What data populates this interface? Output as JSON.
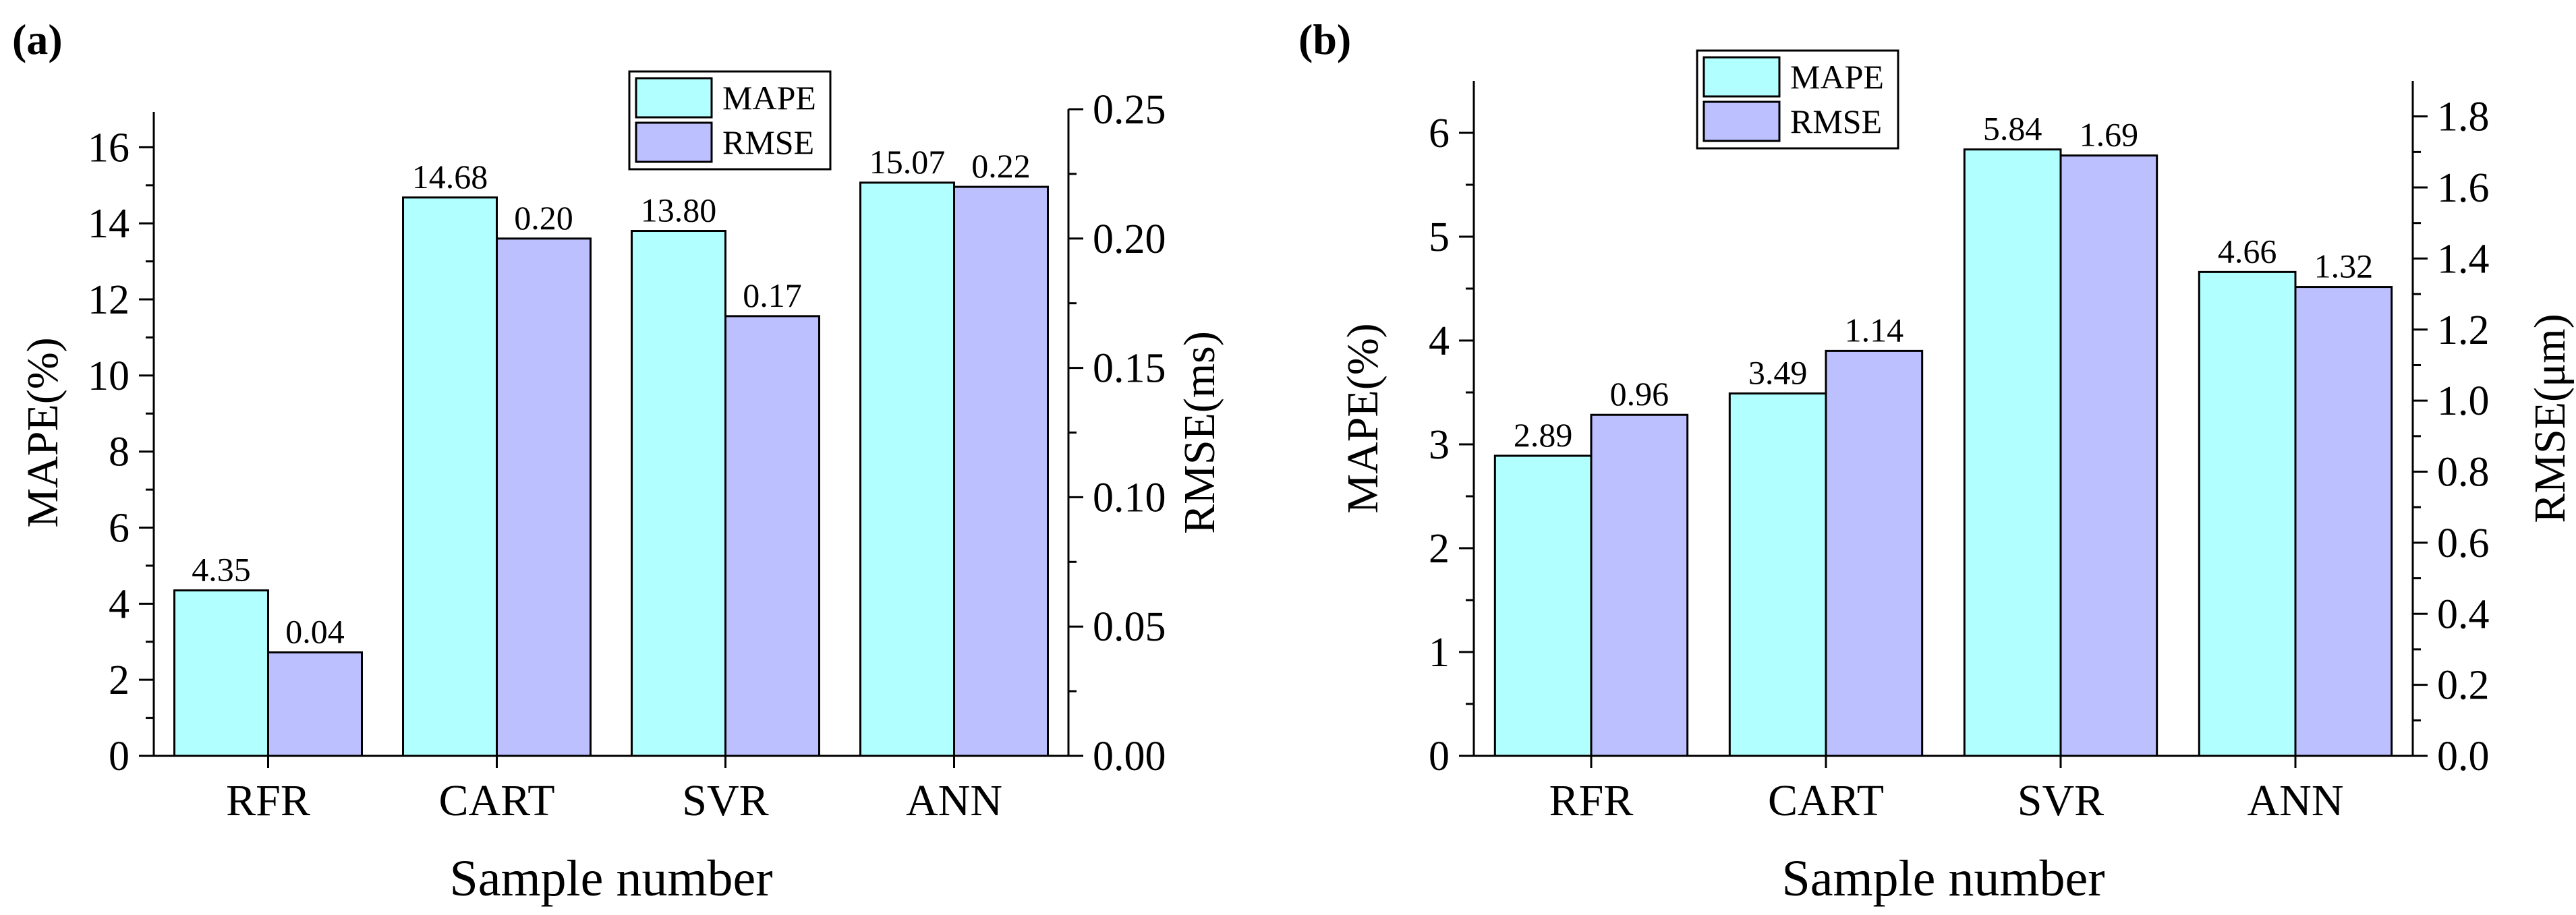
{
  "chart_data": [
    {
      "type": "bar",
      "panel_label": "(a)",
      "xlabel": "Sample number",
      "ylabel": "MAPE(%)",
      "y2label": "RMSE(ms)",
      "categories": [
        "RFR",
        "CART",
        "SVR",
        "ANN"
      ],
      "ylim": [
        0,
        17
      ],
      "y2lim": [
        0,
        0.25
      ],
      "yticks": [
        "0",
        "2",
        "4",
        "6",
        "8",
        "10",
        "12",
        "14",
        "16"
      ],
      "y2ticks": [
        "0.00",
        "0.05",
        "0.10",
        "0.15",
        "0.20",
        "0.25"
      ],
      "series": [
        {
          "name": "MAPE",
          "axis": "left",
          "color": "#b2ffff",
          "values": [
            4.35,
            14.68,
            13.8,
            15.07
          ],
          "labels": [
            "4.35",
            "14.68",
            "13.80",
            "15.07"
          ]
        },
        {
          "name": "RMSE",
          "axis": "right",
          "color": "#bcc0ff",
          "values": [
            0.04,
            0.2,
            0.17,
            0.22
          ],
          "labels": [
            "0.04",
            "0.20",
            "0.17",
            "0.22"
          ]
        }
      ],
      "legend": "top-right"
    },
    {
      "type": "bar",
      "panel_label": "(b)",
      "xlabel": "Sample number",
      "ylabel": "MAPE(%)",
      "y2label": "RMSE(μm)",
      "categories": [
        "RFR",
        "CART",
        "SVR",
        "ANN"
      ],
      "ylim": [
        0,
        6.5
      ],
      "y2lim": [
        0,
        1.9
      ],
      "yticks": [
        "0",
        "1",
        "2",
        "3",
        "4",
        "5",
        "6"
      ],
      "y2ticks": [
        "0.0",
        "0.2",
        "0.4",
        "0.6",
        "0.8",
        "1.0",
        "1.2",
        "1.4",
        "1.6",
        "1.8"
      ],
      "series": [
        {
          "name": "MAPE",
          "axis": "left",
          "color": "#b2ffff",
          "values": [
            2.89,
            3.49,
            5.84,
            4.66
          ],
          "labels": [
            "2.89",
            "3.49",
            "5.84",
            "4.66"
          ]
        },
        {
          "name": "RMSE",
          "axis": "right",
          "color": "#bcc0ff",
          "values": [
            0.96,
            1.14,
            1.69,
            1.32
          ],
          "labels": [
            "0.96",
            "1.14",
            "1.69",
            "1.32"
          ]
        }
      ],
      "legend": "top-left"
    }
  ]
}
